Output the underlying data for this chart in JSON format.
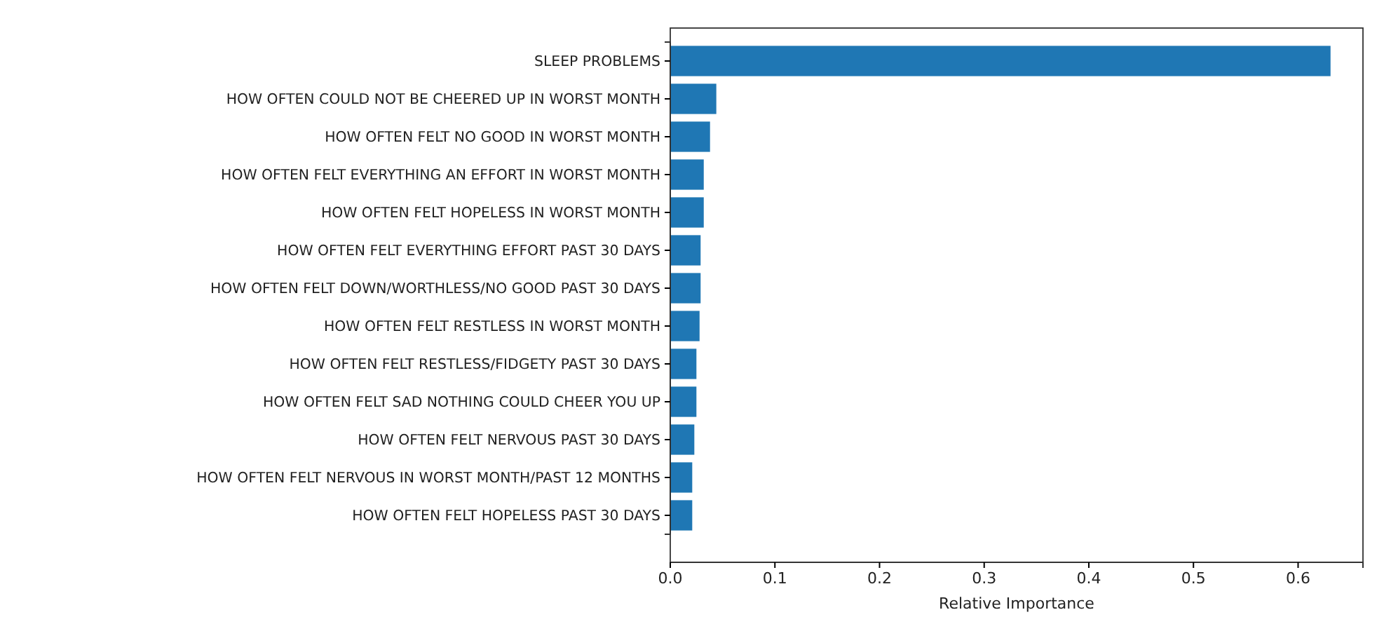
{
  "chart_data": {
    "type": "bar",
    "orientation": "horizontal",
    "xlabel": "Relative Importance",
    "categories": [
      "SLEEP PROBLEMS",
      "HOW OFTEN COULD NOT BE CHEERED UP IN WORST MONTH",
      "HOW OFTEN FELT NO GOOD IN WORST MONTH",
      "HOW OFTEN FELT EVERYTHING AN EFFORT IN WORST MONTH",
      "HOW OFTEN FELT HOPELESS IN WORST MONTH",
      "HOW OFTEN FELT EVERYTHING EFFORT PAST 30 DAYS",
      "HOW OFTEN FELT DOWN/WORTHLESS/NO GOOD PAST 30 DAYS",
      "HOW OFTEN FELT RESTLESS IN WORST MONTH",
      "HOW OFTEN FELT RESTLESS/FIDGETY PAST 30 DAYS",
      "HOW OFTEN FELT SAD NOTHING COULD CHEER YOU UP",
      "HOW OFTEN FELT NERVOUS PAST 30 DAYS",
      "HOW OFTEN FELT NERVOUS IN WORST MONTH/PAST 12 MONTHS",
      "HOW OFTEN FELT HOPELESS PAST 30 DAYS"
    ],
    "values": [
      0.631,
      0.044,
      0.038,
      0.032,
      0.032,
      0.029,
      0.029,
      0.028,
      0.025,
      0.025,
      0.023,
      0.021,
      0.021
    ],
    "color": "#1f77b4",
    "xlim": [
      0,
      0.662
    ],
    "xticks": [
      {
        "value": 0,
        "label": "0.0"
      },
      0.1,
      0.2,
      0.3,
      0.4,
      0.5,
      0.6
    ]
  }
}
